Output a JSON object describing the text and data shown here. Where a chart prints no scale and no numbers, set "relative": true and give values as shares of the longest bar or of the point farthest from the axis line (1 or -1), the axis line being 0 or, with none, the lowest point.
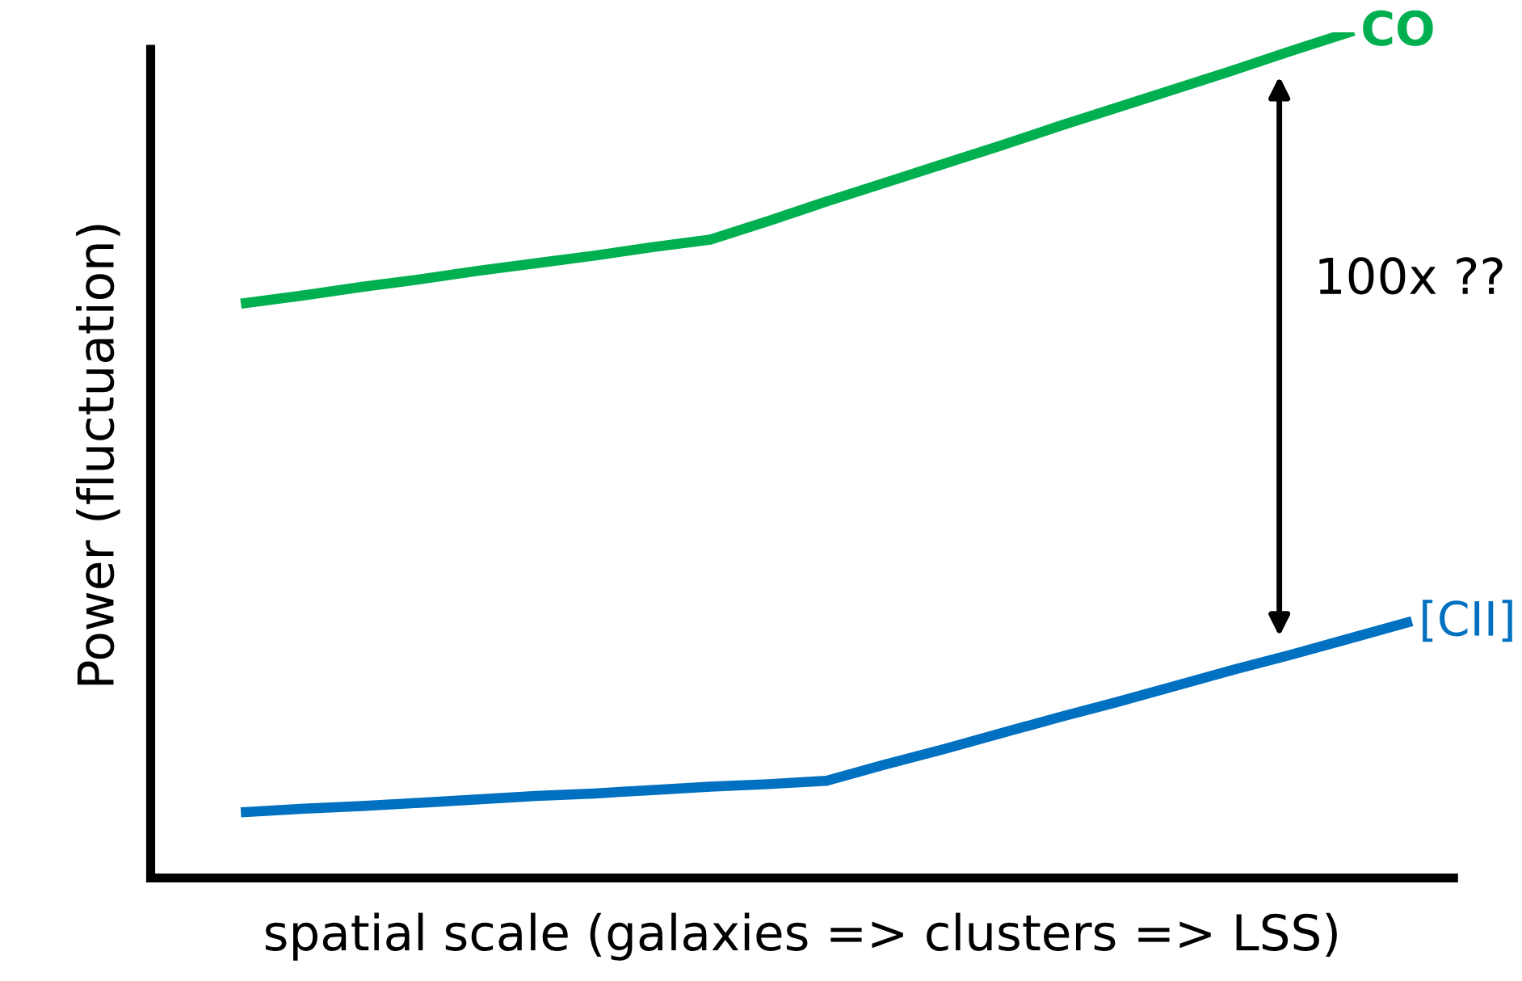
{
  "chart_data": {
    "type": "line",
    "relative": true,
    "xlabel": "spatial scale (galaxies => clusters => LSS)",
    "ylabel": "Power (fluctuation)",
    "categories": [
      null,
      null,
      null,
      null,
      null,
      null,
      null,
      null,
      null,
      null,
      null,
      null,
      null,
      null,
      null,
      null,
      null,
      null,
      null,
      null,
      null
    ],
    "series": [
      {
        "name": "CO",
        "color": "#00b050",
        "values": [
          0.68,
          0.689,
          0.699,
          0.708,
          0.718,
          0.727,
          0.736,
          0.746,
          0.755,
          0.777,
          0.8,
          0.822,
          0.844,
          0.866,
          0.889,
          0.911,
          0.933,
          0.955,
          0.978,
          1.0,
          null
        ]
      },
      {
        "name": "[CII]",
        "color": "#0070c0",
        "values": [
          0.078,
          0.082,
          0.085,
          0.089,
          0.093,
          0.097,
          0.1,
          0.104,
          0.108,
          0.111,
          0.115,
          0.134,
          0.152,
          0.171,
          0.19,
          0.208,
          0.227,
          0.246,
          0.264,
          0.283,
          0.302
        ]
      }
    ],
    "annotations": [
      "100x ??"
    ],
    "legend": false,
    "marker": "none",
    "line_style": "solid"
  }
}
